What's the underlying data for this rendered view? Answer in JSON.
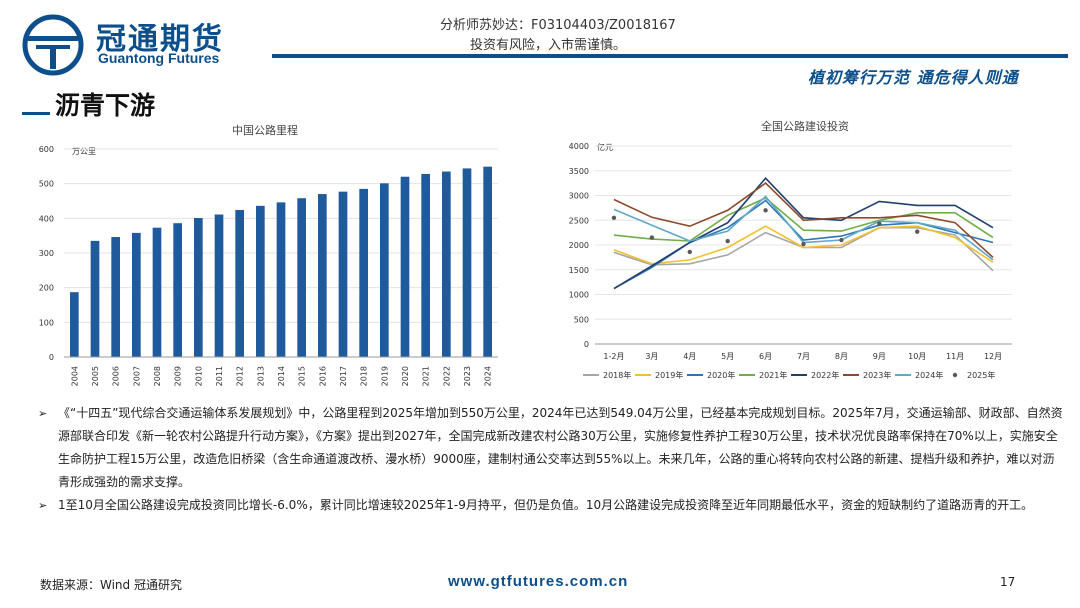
{
  "header": {
    "brand_cn": "冠通期货",
    "brand_en": "Guantong Futures",
    "analyst": "分析师苏妙达：F03104403/Z0018167",
    "risk": "投资有风险，入市需谨慎。",
    "slogan": "植初筹行万范  通危得人则通",
    "brand_color": "#0d4f8b"
  },
  "page_title": "沥青下游",
  "chart_data": [
    {
      "type": "bar",
      "title": "中国公路里程",
      "ylabel": "万公里",
      "ylim": [
        0,
        600
      ],
      "yticks": [
        "0",
        "100",
        "200",
        "300",
        "400",
        "500",
        "600"
      ],
      "categories": [
        "2004",
        "2005",
        "2006",
        "2007",
        "2008",
        "2009",
        "2010",
        "2011",
        "2012",
        "2013",
        "2014",
        "2015",
        "2016",
        "2017",
        "2018",
        "2019",
        "2020",
        "2021",
        "2022",
        "2023",
        "2024"
      ],
      "values": [
        187,
        335,
        346,
        358,
        373,
        386,
        401,
        411,
        424,
        436,
        446,
        458,
        470,
        477,
        485,
        501,
        520,
        528,
        535,
        544,
        549
      ],
      "bar_color": "#1f5a9c",
      "grid": true
    },
    {
      "type": "line",
      "title": "全国公路建设投资",
      "ylabel": "亿元",
      "ylim": [
        0,
        4000
      ],
      "yticks": [
        "0",
        "500",
        "1000",
        "1500",
        "2000",
        "2500",
        "3000",
        "3500",
        "4000"
      ],
      "categories": [
        "1-2月",
        "3月",
        "4月",
        "5月",
        "6月",
        "7月",
        "8月",
        "9月",
        "10月",
        "11月",
        "12月"
      ],
      "legend_position": "bottom",
      "series": [
        {
          "name": "2018年",
          "color": "#a6a6a6",
          "values": [
            1850,
            1600,
            1620,
            1800,
            2250,
            1950,
            1950,
            2350,
            2350,
            2200,
            1480
          ]
        },
        {
          "name": "2019年",
          "color": "#f2c12e",
          "values": [
            1900,
            1620,
            1700,
            1950,
            2380,
            1950,
            2000,
            2350,
            2380,
            2150,
            1650
          ]
        },
        {
          "name": "2020年",
          "color": "#2e75b6",
          "values": [
            1120,
            1550,
            2050,
            2350,
            2900,
            2100,
            2180,
            2400,
            2450,
            2250,
            2050
          ]
        },
        {
          "name": "2021年",
          "color": "#70ad47",
          "values": [
            2200,
            2120,
            2080,
            2600,
            2950,
            2300,
            2280,
            2500,
            2650,
            2650,
            2150
          ]
        },
        {
          "name": "2022年",
          "color": "#1f3f6e",
          "values": [
            1120,
            1580,
            2050,
            2450,
            3350,
            2550,
            2500,
            2880,
            2800,
            2800,
            2350
          ]
        },
        {
          "name": "2023年",
          "color": "#8b4a2b",
          "values": [
            2920,
            2560,
            2380,
            2700,
            3250,
            2500,
            2550,
            2550,
            2600,
            2450,
            1750
          ]
        },
        {
          "name": "2024年",
          "color": "#5fa8c8",
          "values": [
            2720,
            2400,
            2080,
            2280,
            2980,
            2050,
            2100,
            2480,
            2450,
            2300,
            1700
          ]
        },
        {
          "name": "2025年",
          "color": "#595959",
          "marker_only": true,
          "values": [
            2550,
            2150,
            1860,
            2080,
            2700,
            2020,
            2100,
            2430,
            2270,
            null,
            null
          ]
        }
      ]
    }
  ],
  "bullets": [
    "《“十四五”现代综合交通运输体系发展规划》中，公路里程到2025年增加到550万公里，2024年已达到549.04万公里，已经基本完成规划目标。2025年7月，交通运输部、财政部、自然资源部联合印发《新一轮农村公路提升行动方案》，《方案》提出到2027年，全国完成新改建农村公路30万公里，实施修复性养护工程30万公里，技术状况优良路率保持在70%以上，实施安全生命防护工程15万公里，改造危旧桥梁（含生命通道渡改桥、漫水桥）9000座，建制村通公交率达到55%以上。未来几年，公路的重心将转向农村公路的新建、提档升级和养护，难以对沥青形成强劲的需求支撑。",
    "1至10月全国公路建设完成投资同比增长-6.0%，累计同比增速较2025年1-9月持平，但仍是负值。10月公路建设完成投资降至近年同期最低水平，资金的短缺制约了道路沥青的开工。"
  ],
  "footer": {
    "source": "数据来源：Wind 冠通研究",
    "website": "www.gtfutures.com.cn",
    "page_number": "17"
  }
}
